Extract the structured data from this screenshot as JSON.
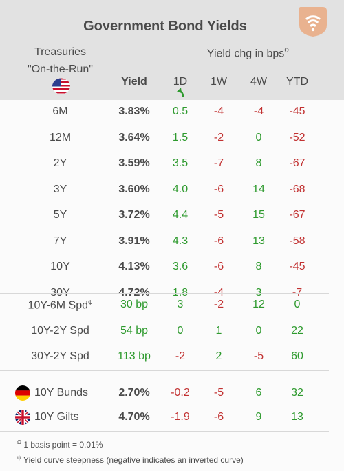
{
  "title": "Government Bond Yields",
  "header": {
    "treasuries_line1": "Treasuries",
    "treasuries_line2": "\"On-the-Run\"",
    "yield_label": "Yield",
    "change_label": "Yield chg in bps",
    "change_marker": "Ω",
    "columns": [
      "1D",
      "1W",
      "4W",
      "YTD"
    ]
  },
  "colors": {
    "positive": "#2e9a2e",
    "negative": "#c23232",
    "header_bg": "#e2e2e2",
    "logo": "#e9b28f"
  },
  "treasuries": [
    {
      "label": "6M",
      "yield": "3.83%",
      "d1": "0.5",
      "w1": "-4",
      "w4": "-4",
      "ytd": "-45"
    },
    {
      "label": "12M",
      "yield": "3.64%",
      "d1": "1.5",
      "w1": "-2",
      "w4": "0",
      "ytd": "-52"
    },
    {
      "label": "2Y",
      "yield": "3.59%",
      "d1": "3.5",
      "w1": "-7",
      "w4": "8",
      "ytd": "-67"
    },
    {
      "label": "3Y",
      "yield": "3.60%",
      "d1": "4.0",
      "w1": "-6",
      "w4": "14",
      "ytd": "-68"
    },
    {
      "label": "5Y",
      "yield": "3.72%",
      "d1": "4.4",
      "w1": "-5",
      "w4": "15",
      "ytd": "-67"
    },
    {
      "label": "7Y",
      "yield": "3.91%",
      "d1": "4.3",
      "w1": "-6",
      "w4": "13",
      "ytd": "-58"
    },
    {
      "label": "10Y",
      "yield": "4.13%",
      "d1": "3.6",
      "w1": "-6",
      "w4": "8",
      "ytd": "-45"
    },
    {
      "label": "30Y",
      "yield": "4.72%",
      "d1": "1.8",
      "w1": "-4",
      "w4": "3",
      "ytd": "-7"
    }
  ],
  "spreads": [
    {
      "label": "10Y-6M Spd",
      "marker": "ψ",
      "value": "30 bp",
      "d1": "3",
      "w1": "-2",
      "w4": "12",
      "ytd": "0"
    },
    {
      "label": "10Y-2Y Spd",
      "marker": "",
      "value": "54 bp",
      "d1": "0",
      "w1": "1",
      "w4": "0",
      "ytd": "22"
    },
    {
      "label": "30Y-2Y Spd",
      "marker": "",
      "value": "113 bp",
      "d1": "-2",
      "w1": "2",
      "w4": "-5",
      "ytd": "60"
    }
  ],
  "foreign": [
    {
      "flag": "germany-flag-icon",
      "label": "10Y Bunds",
      "yield": "2.70%",
      "d1": "-0.2",
      "w1": "-5",
      "w4": "6",
      "ytd": "32"
    },
    {
      "flag": "uk-flag-icon",
      "label": "10Y Gilts",
      "yield": "4.70%",
      "d1": "-1.9",
      "w1": "-6",
      "w4": "9",
      "ytd": "13"
    }
  ],
  "footnotes": [
    {
      "marker": "Ω",
      "text": "1 basis point = 0.01%"
    },
    {
      "marker": "ψ",
      "text": "Yield curve steepness (negative indicates an inverted curve)"
    }
  ]
}
